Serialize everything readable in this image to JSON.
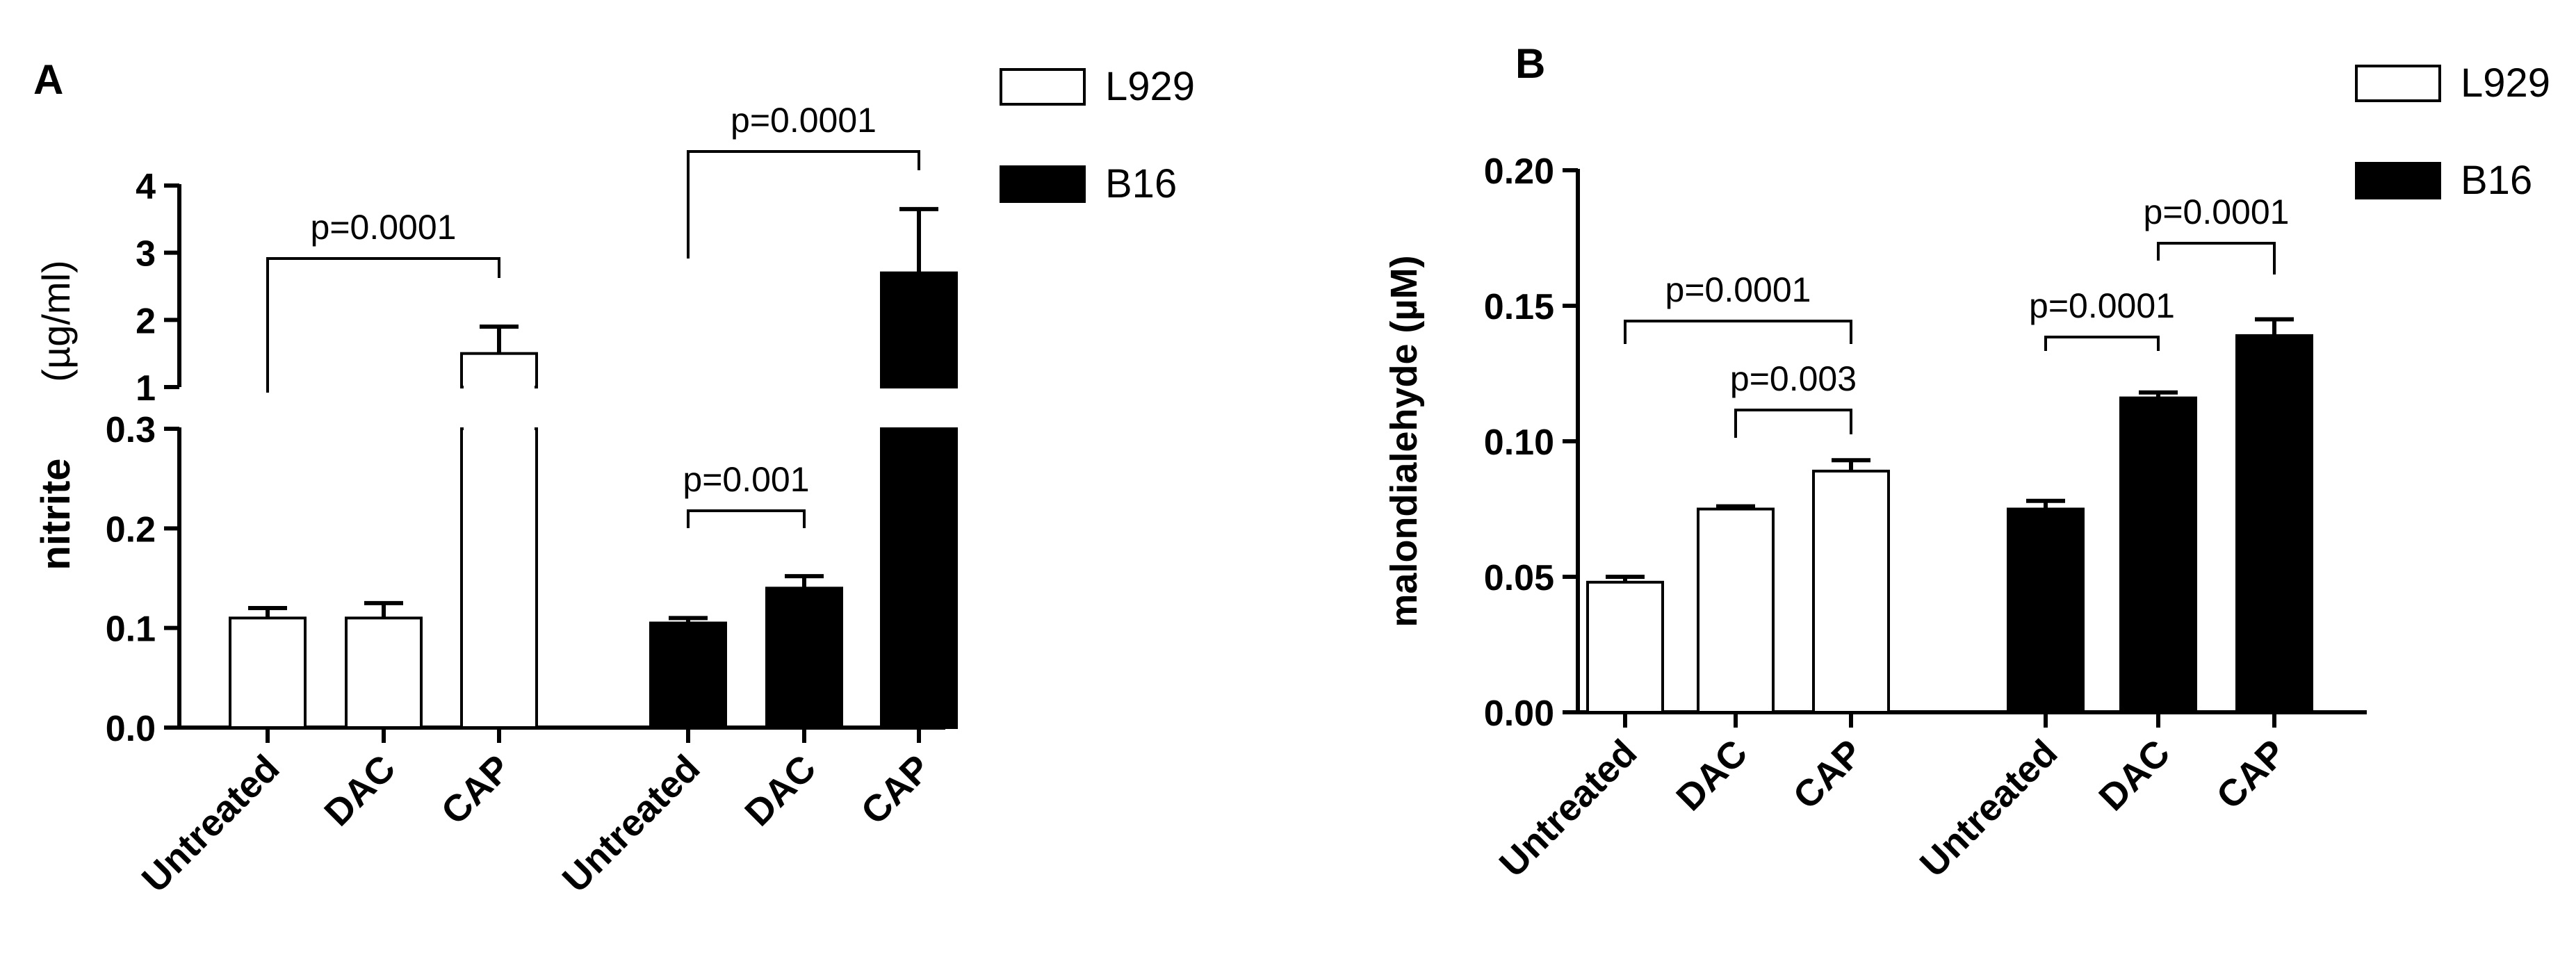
{
  "chart_data": [
    {
      "panel_label": "A",
      "type": "bar",
      "ylabel": "nitrite (µg/ml)",
      "ylabel_parts": {
        "main": "nitrite",
        "unit": "(µg/ml)"
      },
      "y_axis_broken": true,
      "ylim_lower": [
        0,
        0.3
      ],
      "ylim_upper": [
        1,
        4
      ],
      "yticks_lower": [
        "0.0",
        "0.1",
        "0.2",
        "0.3"
      ],
      "yticks_upper": [
        "1",
        "2",
        "3",
        "4"
      ],
      "groups": [
        {
          "cell_line": "L929",
          "fill": "white",
          "categories": [
            "Untreated",
            "DAC",
            "CAP"
          ],
          "values": [
            0.11,
            0.11,
            1.5
          ],
          "errors": [
            0.01,
            0.015,
            0.4
          ]
        },
        {
          "cell_line": "B16",
          "fill": "black",
          "categories": [
            "Untreated",
            "DAC",
            "CAP"
          ],
          "values": [
            0.105,
            0.14,
            2.7
          ],
          "errors": [
            0.005,
            0.012,
            0.95
          ]
        }
      ],
      "comparisons": [
        {
          "label": "p=0.0001",
          "group": 0,
          "from": 0,
          "to": 2
        },
        {
          "label": "p=0.0001",
          "group": 1,
          "from": 0,
          "to": 2
        },
        {
          "label": "p=0.001",
          "group": 1,
          "from": 0,
          "to": 1
        }
      ],
      "legend": [
        {
          "label": "L929",
          "fill": "white"
        },
        {
          "label": "B16",
          "fill": "black"
        }
      ],
      "legend_position": "top-right"
    },
    {
      "panel_label": "B",
      "type": "bar",
      "ylabel": "malondialehyde (µM)",
      "ylim": [
        0,
        0.2
      ],
      "yticks": [
        "0.00",
        "0.05",
        "0.10",
        "0.15",
        "0.20"
      ],
      "groups": [
        {
          "cell_line": "L929",
          "fill": "white",
          "categories": [
            "Untreated",
            "DAC",
            "CAP"
          ],
          "values": [
            0.048,
            0.075,
            0.089
          ],
          "errors": [
            0.002,
            0.001,
            0.004
          ]
        },
        {
          "cell_line": "B16",
          "fill": "black",
          "categories": [
            "Untreated",
            "DAC",
            "CAP"
          ],
          "values": [
            0.075,
            0.116,
            0.139
          ],
          "errors": [
            0.003,
            0.002,
            0.006
          ]
        }
      ],
      "comparisons": [
        {
          "label": "p=0.0001",
          "group": 0,
          "from": 0,
          "to": 2
        },
        {
          "label": "p=0.003",
          "group": 0,
          "from": 1,
          "to": 2
        },
        {
          "label": "p=0.0001",
          "group": 1,
          "from": 0,
          "to": 1
        },
        {
          "label": "p=0.0001",
          "group": 1,
          "from": 1,
          "to": 2
        }
      ],
      "legend": [
        {
          "label": "L929",
          "fill": "white"
        },
        {
          "label": "B16",
          "fill": "black"
        }
      ],
      "legend_position": "top-right"
    }
  ]
}
